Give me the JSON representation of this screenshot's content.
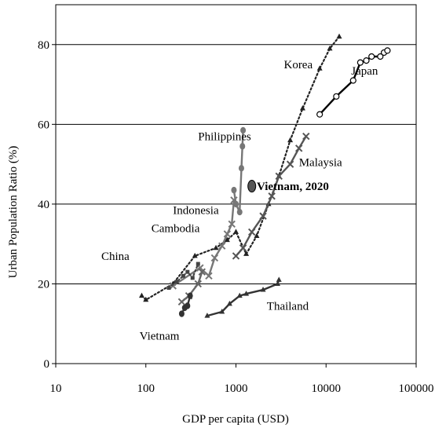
{
  "chart_data": {
    "type": "line",
    "title": "",
    "xlabel": "GDP per capita (USD)",
    "ylabel": "Urban Population Ratio (%)",
    "x_scale": "log",
    "xlim": [
      10,
      100000
    ],
    "ylim": [
      0,
      90
    ],
    "x_ticks": [
      "10",
      "100",
      "1000",
      "10000",
      "100000"
    ],
    "y_ticks": [
      "0",
      "20",
      "40",
      "60",
      "80"
    ],
    "grid": "horizontal lines at 20, 40, 60, 80",
    "series": [
      {
        "name": "Korea",
        "color": "#222222",
        "line": "dotted",
        "marker": "triangle",
        "points": [
          [
            90,
            17
          ],
          [
            100,
            16
          ],
          [
            200,
            20
          ],
          [
            350,
            27
          ],
          [
            600,
            29
          ],
          [
            800,
            31
          ],
          [
            1000,
            33
          ],
          [
            1300,
            27.5
          ],
          [
            1700,
            32
          ],
          [
            2300,
            40
          ],
          [
            3000,
            47
          ],
          [
            4000,
            56
          ],
          [
            5500,
            64
          ],
          [
            8500,
            74
          ],
          [
            11000,
            79
          ],
          [
            14000,
            82
          ]
        ]
      },
      {
        "name": "Japan",
        "color": "#000000",
        "line": "solid",
        "marker": "open-circle",
        "points": [
          [
            8500,
            62.5
          ],
          [
            13000,
            67
          ],
          [
            20000,
            71
          ],
          [
            24000,
            75.5
          ],
          [
            28000,
            76
          ],
          [
            32000,
            77
          ],
          [
            40000,
            77
          ],
          [
            44000,
            78
          ],
          [
            48000,
            78.5
          ]
        ]
      },
      {
        "name": "Malaysia",
        "color": "#555555",
        "line": "solid",
        "marker": "x",
        "points": [
          [
            1000,
            27
          ],
          [
            1200,
            29
          ],
          [
            1500,
            33
          ],
          [
            2000,
            37
          ],
          [
            2500,
            42
          ],
          [
            3000,
            47
          ],
          [
            4000,
            50
          ],
          [
            5000,
            54
          ],
          [
            6000,
            57
          ]
        ]
      },
      {
        "name": "Philippines",
        "color": "#777777",
        "line": "solid",
        "marker": "filled-circle",
        "points": [
          [
            950,
            43.5
          ],
          [
            1000,
            40
          ],
          [
            1100,
            38
          ],
          [
            1150,
            49
          ],
          [
            1180,
            54.5
          ],
          [
            1200,
            58.5
          ]
        ]
      },
      {
        "name": "Indonesia",
        "color": "#777777",
        "line": "solid",
        "marker": "x",
        "points": [
          [
            200,
            19.5
          ],
          [
            400,
            24
          ],
          [
            500,
            22
          ],
          [
            580,
            26.5
          ],
          [
            700,
            29.5
          ],
          [
            800,
            32.5
          ],
          [
            900,
            35
          ],
          [
            950,
            41
          ]
        ]
      },
      {
        "name": "Cambodia",
        "color": "#666666",
        "line": "solid",
        "marker": "x",
        "points": [
          [
            250,
            15.5
          ],
          [
            300,
            17
          ],
          [
            380,
            20
          ],
          [
            420,
            23
          ]
        ]
      },
      {
        "name": "China",
        "color": "#444444",
        "line": "dotted",
        "marker": "square",
        "points": [
          [
            180,
            19
          ],
          [
            220,
            20.5
          ],
          [
            260,
            22
          ],
          [
            290,
            23
          ],
          [
            330,
            21.5
          ],
          [
            380,
            25
          ]
        ]
      },
      {
        "name": "Vietnam",
        "color": "#333333",
        "line": "solid",
        "marker": "filled-circle",
        "points": [
          [
            250,
            12.5
          ],
          [
            270,
            14
          ],
          [
            290,
            14.5
          ],
          [
            310,
            17
          ]
        ]
      },
      {
        "name": "Thailand",
        "color": "#333333",
        "line": "solid",
        "marker": "triangle",
        "points": [
          [
            480,
            12
          ],
          [
            700,
            13
          ],
          [
            850,
            15
          ],
          [
            1100,
            17
          ],
          [
            1300,
            17.5
          ],
          [
            2000,
            18.5
          ],
          [
            2900,
            20
          ],
          [
            3000,
            21
          ]
        ]
      },
      {
        "name": "Vietnam, 2020",
        "color": "#555555",
        "line": "none",
        "marker": "ellipse",
        "points": [
          [
            1500,
            44.5
          ]
        ]
      }
    ],
    "annotations": [
      {
        "text": "Korea",
        "x": 3400,
        "y": 74
      },
      {
        "text": "Japan",
        "x": 19000,
        "y": 72.5
      },
      {
        "text": "Philippines",
        "x": 380,
        "y": 56
      },
      {
        "text": "Malaysia",
        "x": 5000,
        "y": 49.5
      },
      {
        "text": "Vietnam, 2020",
        "x": 1700,
        "y": 43.5
      },
      {
        "text": "Indonesia",
        "x": 200,
        "y": 37.5
      },
      {
        "text": "Cambodia",
        "x": 115,
        "y": 33
      },
      {
        "text": "China",
        "x": 32,
        "y": 26
      },
      {
        "text": "Vietnam",
        "x": 85,
        "y": 6
      },
      {
        "text": "Thailand",
        "x": 2200,
        "y": 13.5
      }
    ]
  }
}
